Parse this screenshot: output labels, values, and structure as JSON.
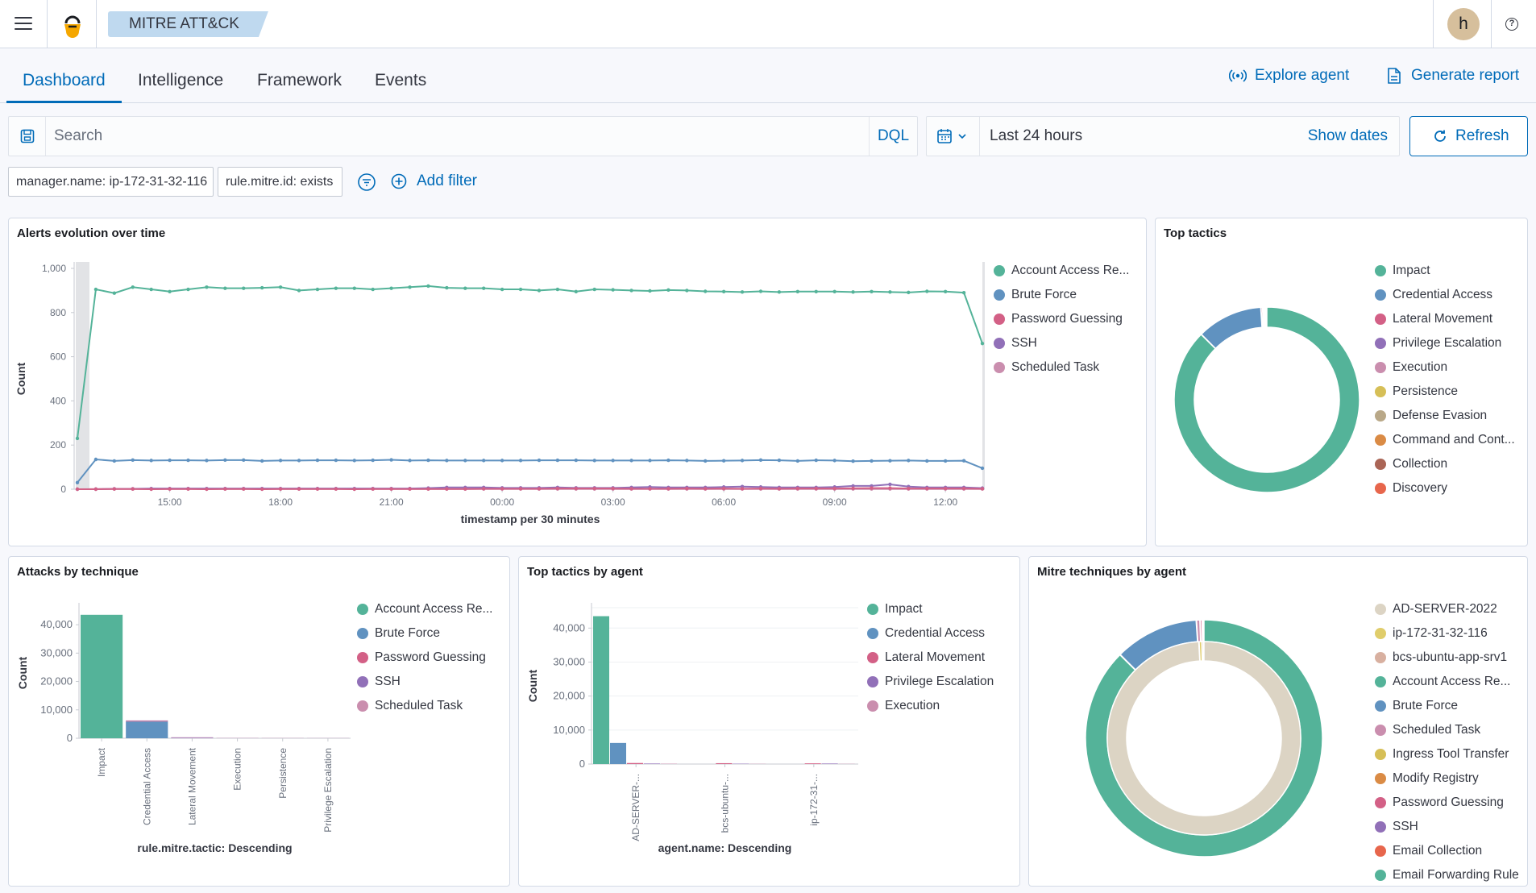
{
  "header": {
    "app_title": "MITRE ATT&CK",
    "avatar_initial": "h",
    "help_glyph": "?"
  },
  "tabs": [
    {
      "label": "Dashboard",
      "active": true
    },
    {
      "label": "Intelligence",
      "active": false
    },
    {
      "label": "Framework",
      "active": false
    },
    {
      "label": "Events",
      "active": false
    }
  ],
  "actions": {
    "explore_agent": "Explore agent",
    "generate_report": "Generate report"
  },
  "query": {
    "placeholder": "Search",
    "language": "DQL",
    "time_range": "Last 24 hours",
    "show_dates": "Show dates",
    "refresh": "Refresh"
  },
  "filters": {
    "pills": [
      "manager.name: ip-172-31-32-116",
      "rule.mitre.id: exists"
    ],
    "add_filter": "Add filter"
  },
  "panels": {
    "alerts": {
      "title": "Alerts evolution over time"
    },
    "top_tactics": {
      "title": "Top tactics"
    },
    "attacks": {
      "title": "Attacks by technique"
    },
    "by_agent": {
      "title": "Top tactics by agent"
    },
    "techniques": {
      "title": "Mitre techniques by agent"
    }
  },
  "chart_data": [
    {
      "id": "alerts",
      "type": "line",
      "title": "Alerts evolution over time",
      "xlabel": "timestamp per 30 minutes",
      "ylabel": "Count",
      "ylim": [
        0,
        1000
      ],
      "yticks": [
        0,
        200,
        400,
        600,
        800,
        1000
      ],
      "ytick_labels": [
        "0",
        "200",
        "400",
        "600",
        "800",
        "1,000"
      ],
      "xticks": [
        "15:00",
        "18:00",
        "21:00",
        "00:00",
        "03:00",
        "06:00",
        "09:00",
        "12:00"
      ],
      "series": [
        {
          "name": "Account Access Re...",
          "color": "#54b399",
          "values": [
            230,
            905,
            888,
            915,
            905,
            895,
            905,
            915,
            910,
            910,
            912,
            915,
            900,
            905,
            910,
            910,
            905,
            910,
            915,
            920,
            912,
            910,
            910,
            905,
            905,
            900,
            905,
            895,
            905,
            903,
            900,
            898,
            902,
            900,
            896,
            895,
            893,
            896,
            893,
            895,
            895,
            895,
            893,
            895,
            893,
            891,
            896,
            895,
            890,
            660
          ]
        },
        {
          "name": "Brute Force",
          "color": "#6092c0",
          "values": [
            30,
            135,
            128,
            132,
            130,
            131,
            131,
            130,
            132,
            132,
            128,
            130,
            130,
            131,
            131,
            130,
            131,
            133,
            130,
            131,
            130,
            130,
            130,
            130,
            130,
            131,
            131,
            131,
            130,
            130,
            130,
            130,
            131,
            130,
            128,
            129,
            130,
            132,
            131,
            128,
            131,
            130,
            127,
            128,
            129,
            130,
            128,
            128,
            129,
            95
          ]
        },
        {
          "name": "Password Guessing",
          "color": "#d36086",
          "values": [
            0,
            0,
            1,
            1,
            0,
            1,
            1,
            0,
            1,
            1,
            0,
            1,
            1,
            1,
            1,
            0,
            1,
            1,
            1,
            1,
            1,
            1,
            2,
            2,
            2,
            2,
            3,
            3,
            3,
            3,
            2,
            2,
            2,
            3,
            2,
            3,
            2,
            3,
            2,
            3,
            3,
            3,
            4,
            5,
            5,
            3,
            3,
            3,
            3,
            2
          ]
        },
        {
          "name": "SSH",
          "color": "#9170b8",
          "values": [
            0,
            0,
            2,
            2,
            3,
            3,
            3,
            3,
            3,
            3,
            3,
            3,
            3,
            3,
            3,
            3,
            3,
            3,
            3,
            5,
            8,
            8,
            8,
            6,
            6,
            6,
            8,
            6,
            6,
            6,
            8,
            10,
            8,
            8,
            8,
            10,
            12,
            10,
            8,
            8,
            8,
            10,
            15,
            15,
            22,
            12,
            8,
            8,
            8,
            5
          ]
        },
        {
          "name": "Scheduled Task",
          "color": "#ca8eae",
          "values": [
            0,
            1,
            1,
            1,
            1,
            1,
            1,
            1,
            1,
            1,
            1,
            1,
            1,
            1,
            1,
            1,
            1,
            1,
            1,
            1,
            1,
            1,
            1,
            1,
            1,
            1,
            1,
            1,
            1,
            1,
            1,
            1,
            1,
            1,
            1,
            1,
            1,
            1,
            1,
            1,
            1,
            1,
            1,
            1,
            1,
            1,
            1,
            1,
            1,
            1
          ]
        }
      ],
      "legend": "right"
    },
    {
      "id": "top_tactics",
      "type": "pie",
      "title": "Top tactics",
      "legend": "right",
      "categories": [
        "Impact",
        "Credential Access",
        "Lateral Movement",
        "Privilege Escalation",
        "Execution",
        "Persistence",
        "Defense Evasion",
        "Command and Cont...",
        "Collection",
        "Discovery"
      ],
      "colors": [
        "#54b399",
        "#6092c0",
        "#d36086",
        "#9170b8",
        "#ca8eae",
        "#d6bf57",
        "#b9a888",
        "#da8b45",
        "#aa6556",
        "#e7664c"
      ],
      "values": [
        87.5,
        11.5,
        0.3,
        0.2,
        0.1,
        0.1,
        0.1,
        0.1,
        0.05,
        0.05
      ]
    },
    {
      "id": "attacks",
      "type": "bar",
      "stacked": true,
      "title": "Attacks by technique",
      "xlabel": "rule.mitre.tactic: Descending",
      "ylabel": "Count",
      "ylim": [
        0,
        46000
      ],
      "yticks": [
        0,
        10000,
        20000,
        30000,
        40000
      ],
      "ytick_labels": [
        "0",
        "10,000",
        "20,000",
        "30,000",
        "40,000"
      ],
      "categories": [
        "Impact",
        "Credential Access",
        "Lateral Movement",
        "Execution",
        "Persistence",
        "Privilege Escalation"
      ],
      "series": [
        {
          "name": "Account Access Re...",
          "color": "#54b399",
          "values": [
            43500,
            0,
            0,
            0,
            0,
            0
          ]
        },
        {
          "name": "Brute Force",
          "color": "#6092c0",
          "values": [
            0,
            5900,
            0,
            0,
            0,
            0
          ]
        },
        {
          "name": "Password Guessing",
          "color": "#d36086",
          "values": [
            0,
            250,
            0,
            0,
            0,
            0
          ]
        },
        {
          "name": "SSH",
          "color": "#9170b8",
          "values": [
            0,
            120,
            200,
            60,
            40,
            30
          ]
        },
        {
          "name": "Scheduled Task",
          "color": "#ca8eae",
          "values": [
            0,
            0,
            150,
            80,
            60,
            40
          ]
        }
      ],
      "legend": "right"
    },
    {
      "id": "by_agent",
      "type": "bar",
      "stacked": false,
      "title": "Top tactics by agent",
      "xlabel": "agent.name: Descending",
      "ylabel": "Count",
      "ylim": [
        0,
        46000
      ],
      "yticks": [
        0,
        10000,
        20000,
        30000,
        40000
      ],
      "ytick_labels": [
        "0",
        "10,000",
        "20,000",
        "30,000",
        "40,000"
      ],
      "categories": [
        "AD-SERVER-...",
        "bcs-ubuntu-...",
        "ip-172-31-..."
      ],
      "series": [
        {
          "name": "Impact",
          "color": "#54b399",
          "values": [
            43500,
            0,
            0
          ]
        },
        {
          "name": "Credential Access",
          "color": "#6092c0",
          "values": [
            6200,
            0,
            0
          ]
        },
        {
          "name": "Lateral Movement",
          "color": "#d36086",
          "values": [
            300,
            250,
            200
          ]
        },
        {
          "name": "Privilege Escalation",
          "color": "#9170b8",
          "values": [
            150,
            100,
            150
          ]
        },
        {
          "name": "Execution",
          "color": "#ca8eae",
          "values": [
            100,
            60,
            60
          ]
        }
      ],
      "legend": "right"
    },
    {
      "id": "techniques",
      "type": "pie",
      "title": "Mitre techniques by agent",
      "legend": "right",
      "categories": [
        "AD-SERVER-2022",
        "ip-172-31-32-116",
        "bcs-ubuntu-app-srv1",
        "Account Access Re...",
        "Brute Force",
        "Scheduled Task",
        "Ingress Tool Transfer",
        "Modify Registry",
        "Password Guessing",
        "SSH",
        "Email Collection",
        "Email Forwarding Rule"
      ],
      "colors": [
        "#dcd4c4",
        "#e0cd6b",
        "#d8b0a0",
        "#54b399",
        "#6092c0",
        "#ca8eae",
        "#d6bf57",
        "#da8b45",
        "#d36086",
        "#9170b8",
        "#e7664c",
        "#54b399"
      ],
      "inner_ring": {
        "categories": [
          "AD-SERVER-2022",
          "ip-172-31-32-116",
          "bcs-ubuntu-app-srv1"
        ],
        "values": [
          99.2,
          0.5,
          0.3
        ]
      },
      "outer_ring": {
        "categories": [
          "Account Access Re...",
          "Brute Force",
          "Scheduled Task",
          "Password Guessing",
          "SSH"
        ],
        "values": [
          87.5,
          11.5,
          0.5,
          0.3,
          0.2
        ]
      }
    }
  ]
}
